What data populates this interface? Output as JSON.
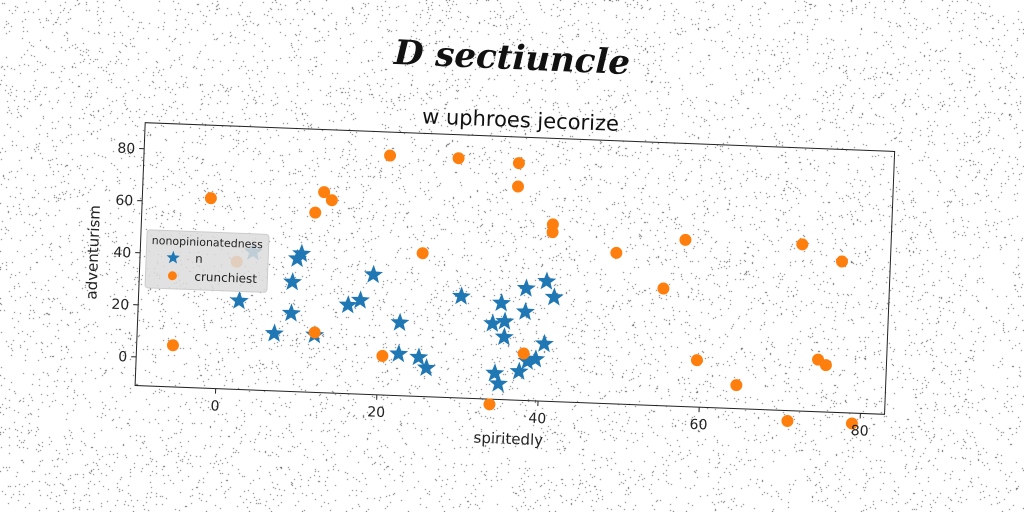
{
  "suptitle": "D sectiuncle",
  "chart_data": {
    "type": "scatter",
    "title": "w uphroes jecorize",
    "xlabel": "spiritedly",
    "ylabel": "adventurism",
    "xlim": [
      -10,
      83
    ],
    "ylim": [
      -11,
      90
    ],
    "xticks": [
      0,
      20,
      40,
      60,
      80
    ],
    "yticks": [
      0,
      20,
      40,
      60,
      80
    ],
    "grid": false,
    "legend": {
      "title": "nonopinionatedness",
      "placement": "left"
    },
    "series": [
      {
        "name": "n",
        "marker": "star",
        "color": "#1f77b4",
        "points": [
          [
            4,
            42
          ],
          [
            9.5,
            40
          ],
          [
            10,
            42
          ],
          [
            9,
            31
          ],
          [
            2.5,
            23
          ],
          [
            9,
            19
          ],
          [
            7,
            11
          ],
          [
            12,
            11
          ],
          [
            16,
            23
          ],
          [
            17.5,
            25
          ],
          [
            19,
            35
          ],
          [
            22.5,
            17
          ],
          [
            22.5,
            5
          ],
          [
            25,
            4
          ],
          [
            26,
            0
          ],
          [
            30,
            28
          ],
          [
            34,
            18
          ],
          [
            35,
            26
          ],
          [
            35.5,
            19
          ],
          [
            35.5,
            13
          ],
          [
            34.5,
            -1
          ],
          [
            35,
            -5
          ],
          [
            37.5,
            0
          ],
          [
            38,
            32
          ],
          [
            38,
            23
          ],
          [
            38.5,
            4
          ],
          [
            39.5,
            5
          ],
          [
            40.5,
            35
          ],
          [
            41.5,
            29
          ],
          [
            40.5,
            11
          ]
        ]
      },
      {
        "name": "crunchiest",
        "marker": "circle",
        "color": "#ff7f0e",
        "points": [
          [
            -5.5,
            5
          ],
          [
            -1.5,
            62
          ],
          [
            2,
            38
          ],
          [
            11.5,
            58
          ],
          [
            12.5,
            66
          ],
          [
            13.5,
            63
          ],
          [
            12,
            12
          ],
          [
            20.5,
            81
          ],
          [
            20.5,
            4
          ],
          [
            25,
            44
          ],
          [
            29,
            81
          ],
          [
            36.5,
            80
          ],
          [
            36.5,
            71
          ],
          [
            41,
            57
          ],
          [
            41,
            54
          ],
          [
            38,
            7
          ],
          [
            34,
            -13
          ],
          [
            49,
            47
          ],
          [
            55,
            34
          ],
          [
            57.5,
            53
          ],
          [
            59.5,
            7
          ],
          [
            64.5,
            -2
          ],
          [
            71,
            -15
          ],
          [
            72,
            53
          ],
          [
            77,
            47
          ],
          [
            74.5,
            9
          ],
          [
            75.5,
            7
          ],
          [
            79,
            -15
          ]
        ]
      }
    ]
  }
}
